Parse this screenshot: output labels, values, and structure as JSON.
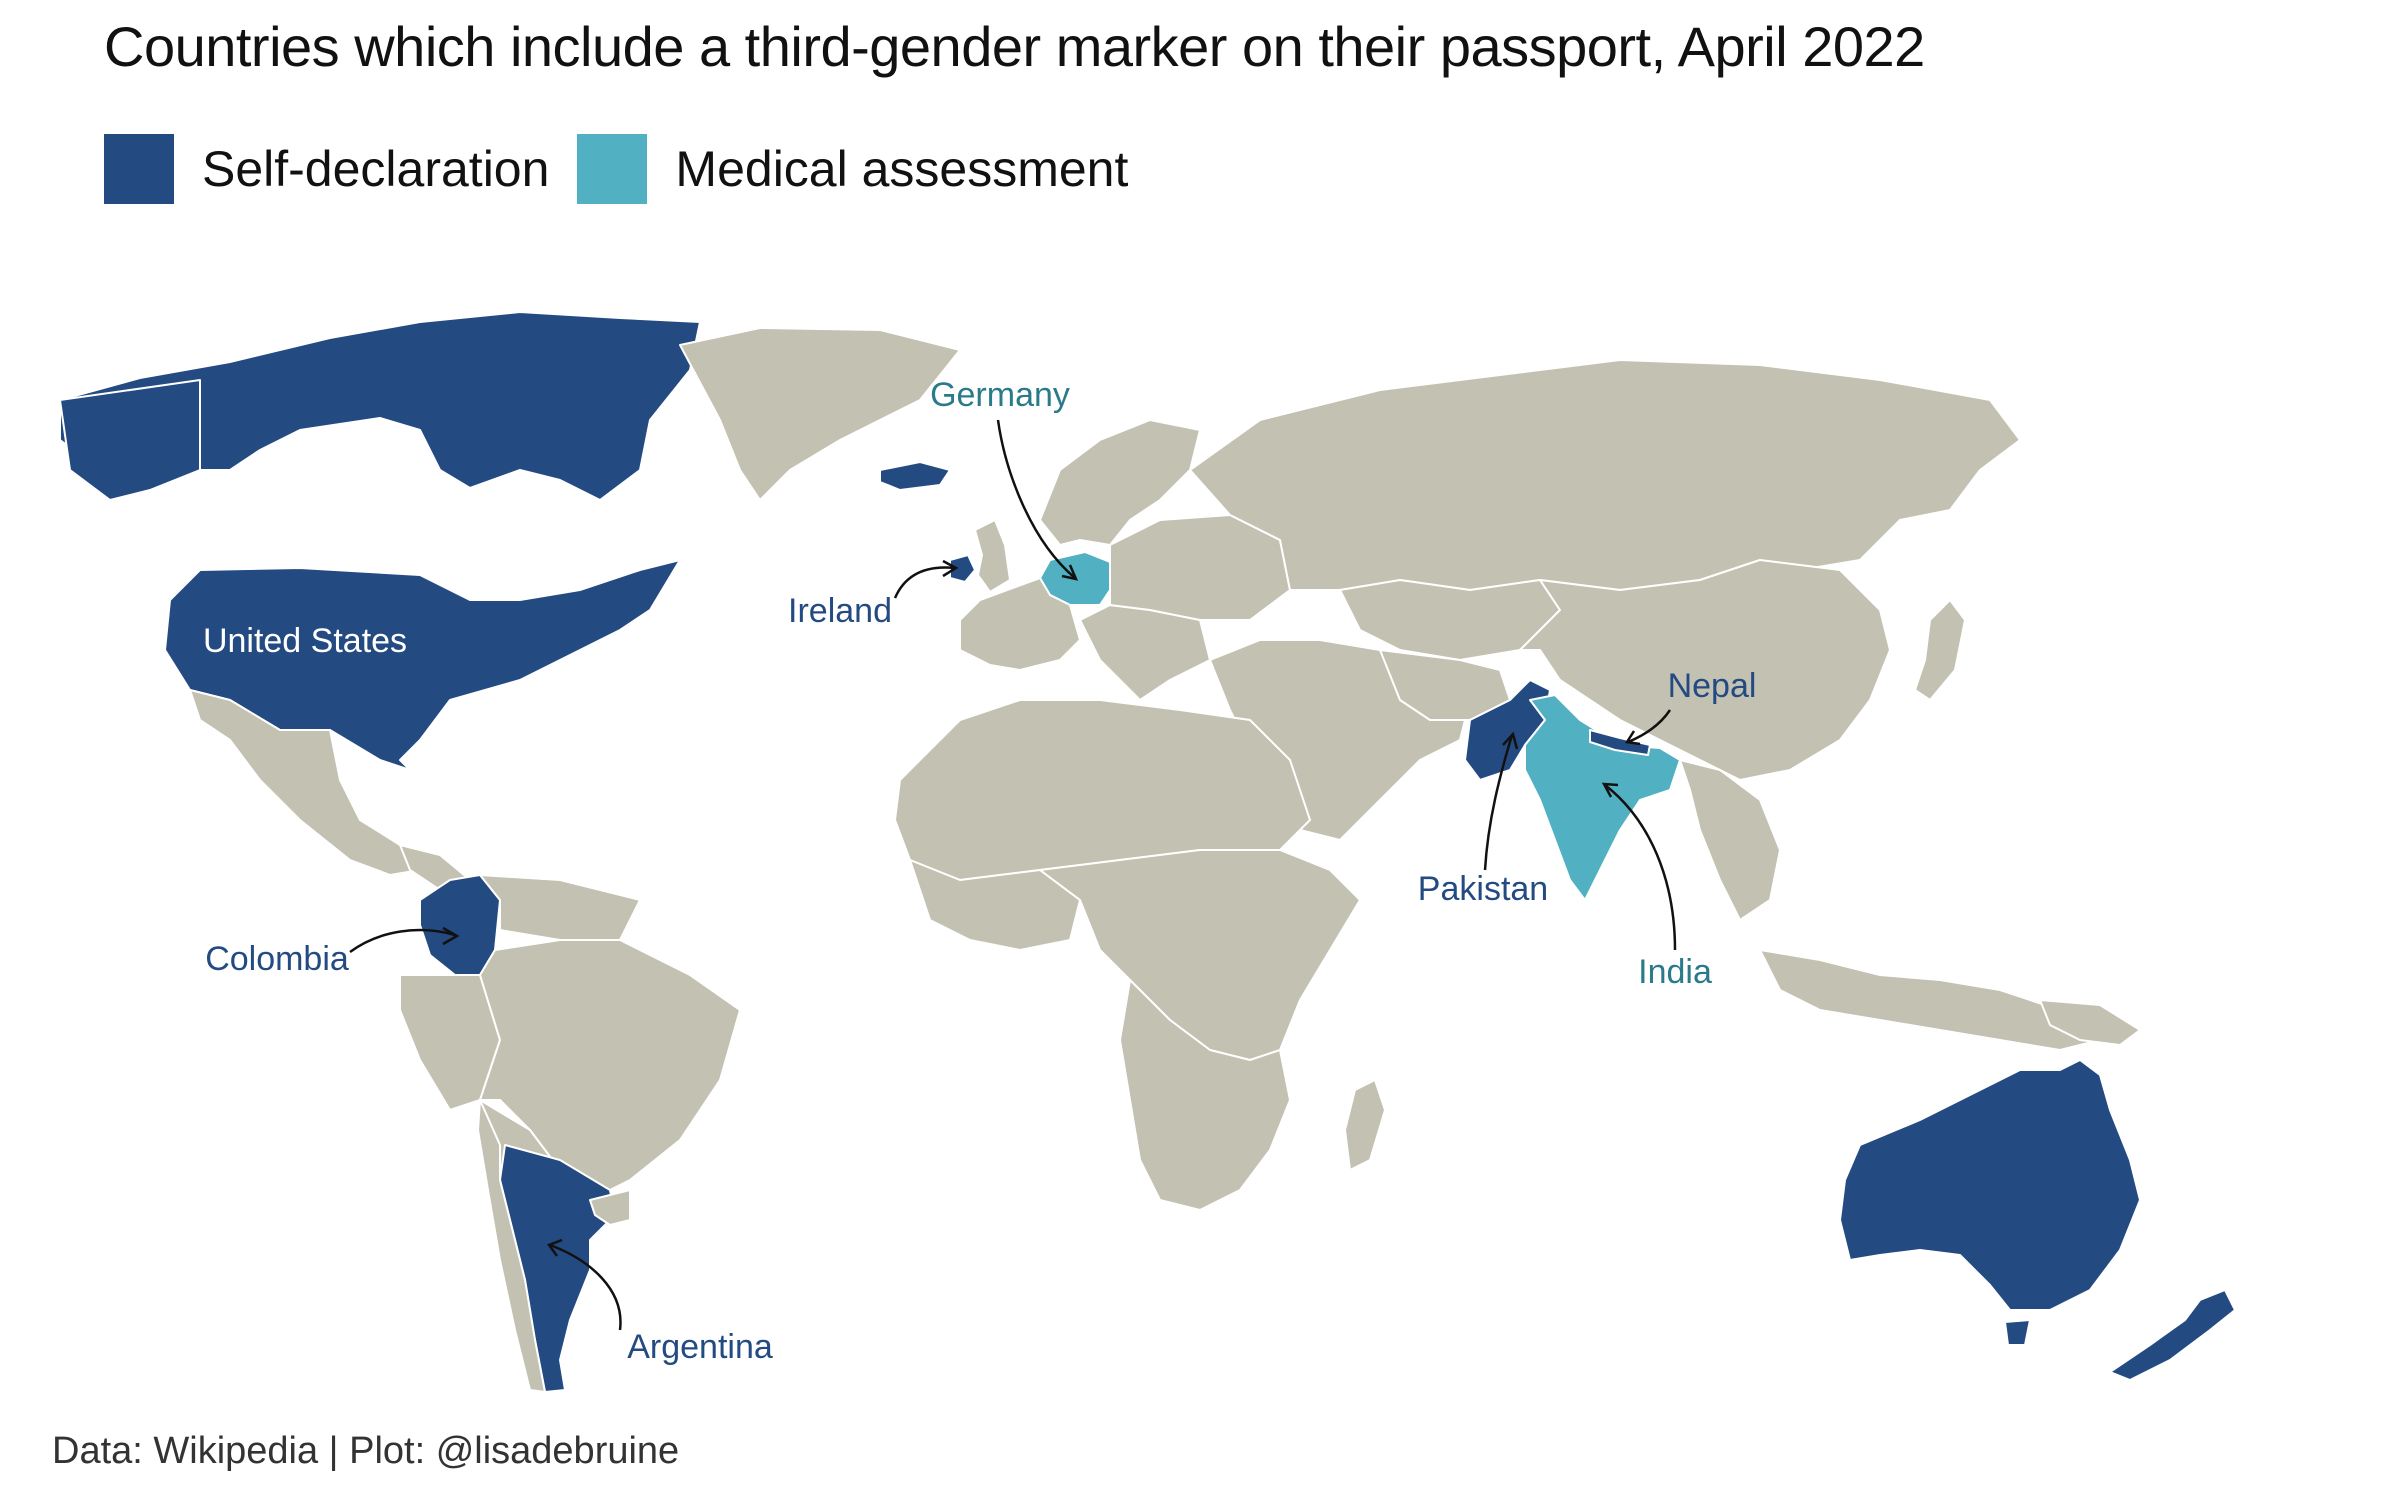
{
  "title": "Countries which include a third-gender marker on their passport, April 2022",
  "legend": [
    {
      "label": "Self-declaration",
      "color": "#244a82"
    },
    {
      "label": "Medical assessment",
      "color": "#51b0c1"
    }
  ],
  "colors": {
    "other": "#c3c1b1",
    "border": "#ffffff",
    "self": "#244a82",
    "medical": "#51b0c1"
  },
  "countries": [
    {
      "name": "United States",
      "category": "Self-declaration"
    },
    {
      "name": "Colombia",
      "category": "Self-declaration"
    },
    {
      "name": "Argentina",
      "category": "Self-declaration"
    },
    {
      "name": "Ireland",
      "category": "Self-declaration"
    },
    {
      "name": "Germany",
      "category": "Medical assessment"
    },
    {
      "name": "Pakistan",
      "category": "Self-declaration"
    },
    {
      "name": "India",
      "category": "Medical assessment"
    },
    {
      "name": "Nepal",
      "category": "Self-declaration"
    }
  ],
  "caption": "Data: Wikipedia | Plot: @lisadebruine"
}
